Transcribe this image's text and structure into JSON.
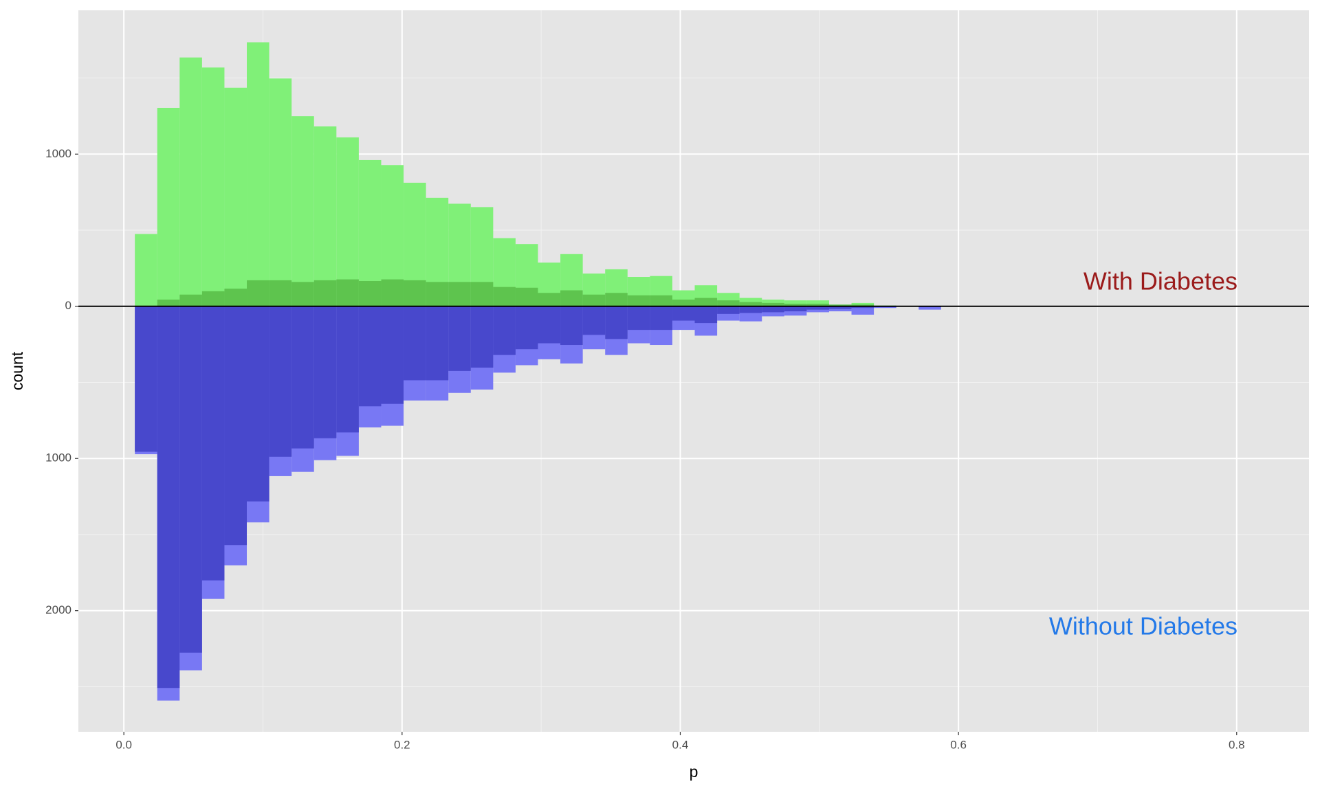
{
  "chart_data": {
    "type": "histogram",
    "x_label": "p",
    "y_label": "count",
    "bins": [
      0.0079,
      0.024,
      0.0401,
      0.0562,
      0.0723,
      0.0884,
      0.1045,
      0.1206,
      0.1367,
      0.1528,
      0.1689,
      0.185,
      0.2011,
      0.2172,
      0.2333,
      0.2494,
      0.2655,
      0.2816,
      0.2977,
      0.3138,
      0.3299,
      0.346,
      0.3621,
      0.3782,
      0.3943,
      0.4104,
      0.4265,
      0.4426,
      0.4587,
      0.4748,
      0.4909,
      0.507,
      0.5231,
      0.5392,
      0.5553,
      0.5714,
      0.5875
    ],
    "series": [
      {
        "color": "#80f078",
        "values": [
          475,
          1304,
          1635,
          1569,
          1436,
          1735,
          1497,
          1249,
          1182,
          1110,
          961,
          928,
          812,
          713,
          674,
          652,
          448,
          409,
          287,
          343,
          215,
          243,
          193,
          199,
          105,
          138,
          88,
          55,
          44,
          39,
          39,
          11,
          22,
          5,
          0,
          0
        ]
      },
      {
        "color": "#5ec44e",
        "values": [
          0,
          44,
          77,
          99,
          116,
          171,
          171,
          160,
          171,
          177,
          166,
          177,
          171,
          160,
          160,
          160,
          127,
          122,
          88,
          105,
          77,
          88,
          72,
          72,
          44,
          55,
          39,
          28,
          22,
          17,
          17,
          11,
          11,
          0,
          0,
          0
        ]
      },
      {
        "color": "#7878f4",
        "values": [
          -972,
          -2591,
          -2392,
          -1923,
          -1702,
          -1420,
          -1116,
          -1088,
          -1011,
          -983,
          -796,
          -785,
          -619,
          -619,
          -569,
          -547,
          -436,
          -387,
          -348,
          -376,
          -282,
          -320,
          -243,
          -254,
          -155,
          -193,
          -94,
          -99,
          -66,
          -61,
          -39,
          -33,
          -55,
          -11,
          0,
          -22
        ]
      },
      {
        "color": "#4848cc",
        "values": [
          -956,
          -2508,
          -2276,
          -1801,
          -1569,
          -1282,
          -989,
          -934,
          -867,
          -829,
          -657,
          -641,
          -486,
          -486,
          -425,
          -403,
          -320,
          -282,
          -243,
          -254,
          -188,
          -215,
          -155,
          -155,
          -94,
          -110,
          -50,
          -44,
          -39,
          -33,
          -22,
          -17,
          -11,
          -6,
          0,
          -6
        ]
      }
    ],
    "xlim": [
      -0.0327,
      0.852
    ],
    "xticks": [
      {
        "value": 0,
        "label": "0.0"
      },
      0.2,
      0.4,
      0.6,
      0.8
    ],
    "xminorticks": [
      0.1,
      0.3,
      0.5,
      0.7
    ],
    "ylim": [
      -2796,
      1945
    ],
    "yticks": [
      1000,
      0,
      {
        "value": -1000,
        "label": "1000"
      },
      {
        "value": -2000,
        "label": "2000"
      }
    ],
    "yminorticks": [
      1500,
      500,
      -500,
      -1500,
      -2500
    ],
    "hline": 0,
    "grid": true,
    "annotations": [
      {
        "text": "With Diabetes",
        "color": "#9b1b1b"
      },
      {
        "text": "Without Diabetes",
        "color": "#2379e8"
      }
    ]
  }
}
